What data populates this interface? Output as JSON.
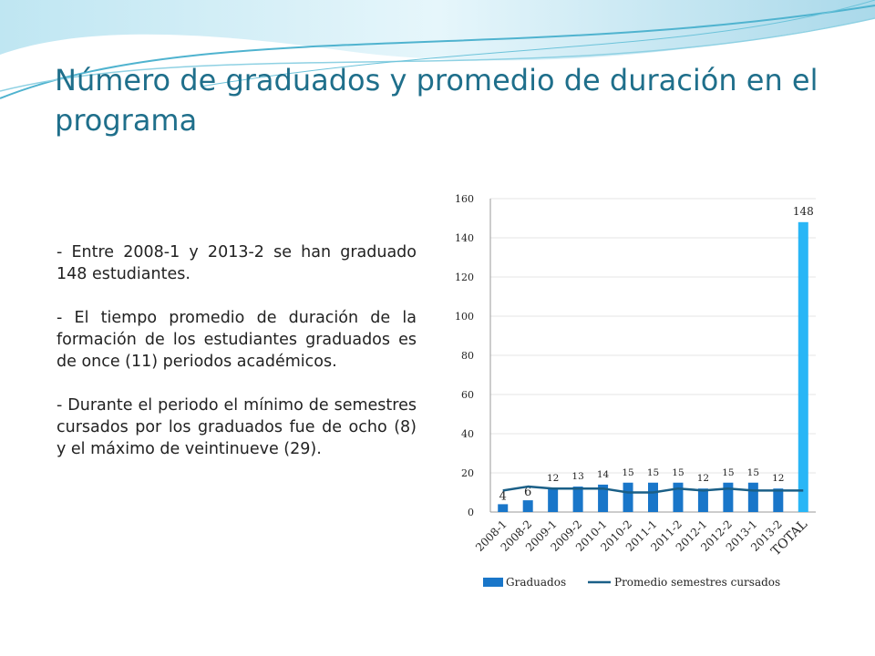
{
  "slide": {
    "title": "Número de graduados y promedio de duración en el programa",
    "bullets": [
      "- Entre 2008-1 y 2013-2 se han graduado 148 estudiantes.",
      "- El tiempo promedio de duración de la formación de los estudiantes graduados es de once (11) periodos académicos.",
      "- Durante el periodo el mínimo de semestres cursados por los graduados fue de ocho (8) y el máximo de veintinueve (29)."
    ]
  },
  "colors": {
    "title": "#1f6f8b",
    "bar": "#1976c9",
    "bar_total": "#29b6f6",
    "line": "#1a5f87",
    "grid": "#e6e6e6"
  },
  "chart_data": {
    "type": "bar",
    "categories": [
      "2008-1",
      "2008-2",
      "2009-1",
      "2009-2",
      "2010-1",
      "2010-2",
      "2011-1",
      "2011-2",
      "2012-1",
      "2012-2",
      "2013-1",
      "2013-2",
      "TOTAL"
    ],
    "series": [
      {
        "name": "Graduados",
        "type": "bar",
        "values": [
          4,
          6,
          12,
          13,
          14,
          15,
          15,
          15,
          12,
          15,
          15,
          12,
          148
        ]
      },
      {
        "name": "Promedio semestres cursados",
        "type": "line",
        "values": [
          11,
          13,
          12,
          12,
          12,
          10,
          10,
          12,
          11,
          12,
          11,
          11,
          11
        ]
      }
    ],
    "ylim": [
      0,
      160
    ],
    "yticks": [
      0,
      20,
      40,
      60,
      80,
      100,
      120,
      140,
      160
    ],
    "grid": true,
    "legend": "bottom"
  }
}
